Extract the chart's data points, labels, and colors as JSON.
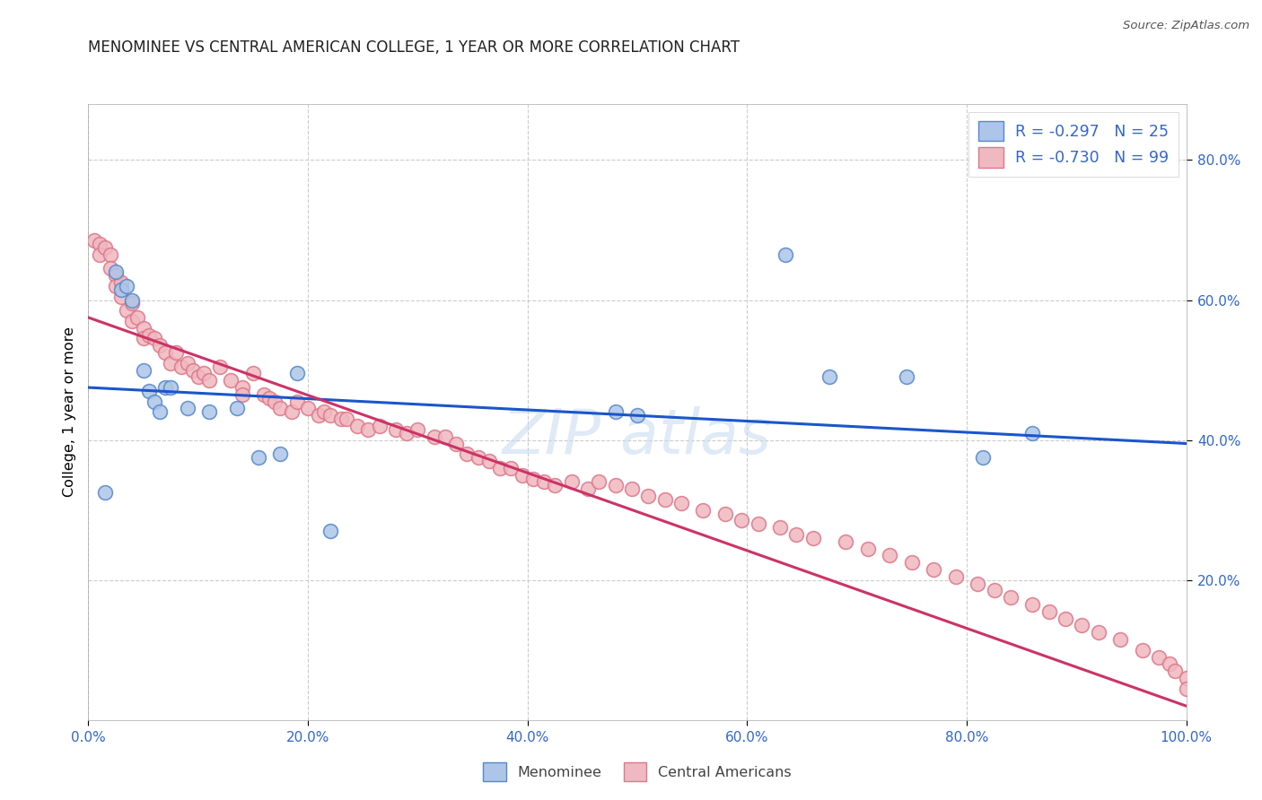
{
  "title": "MENOMINEE VS CENTRAL AMERICAN COLLEGE, 1 YEAR OR MORE CORRELATION CHART",
  "source": "Source: ZipAtlas.com",
  "ylabel": "College, 1 year or more",
  "blue_face": "#adc6e8",
  "blue_edge": "#5588cc",
  "pink_face": "#f0b8c0",
  "pink_edge": "#dd7788",
  "blue_line": "#1a56cc",
  "pink_line": "#cc3366",
  "tick_color": "#3366cc",
  "title_color": "#222222",
  "legend_label_color": "#3366cc",
  "bottom_legend_color": "#444444",
  "menominee_x": [
    0.015,
    0.025,
    0.03,
    0.035,
    0.04,
    0.05,
    0.055,
    0.06,
    0.065,
    0.07,
    0.075,
    0.09,
    0.11,
    0.135,
    0.155,
    0.175,
    0.19,
    0.22,
    0.48,
    0.5,
    0.635,
    0.675,
    0.745,
    0.815,
    0.86
  ],
  "menominee_y": [
    0.325,
    0.64,
    0.615,
    0.62,
    0.6,
    0.5,
    0.47,
    0.455,
    0.44,
    0.475,
    0.475,
    0.445,
    0.44,
    0.445,
    0.375,
    0.38,
    0.495,
    0.27,
    0.44,
    0.435,
    0.665,
    0.49,
    0.49,
    0.375,
    0.41
  ],
  "central_x": [
    0.005,
    0.01,
    0.01,
    0.015,
    0.02,
    0.02,
    0.025,
    0.025,
    0.03,
    0.03,
    0.035,
    0.04,
    0.04,
    0.045,
    0.05,
    0.05,
    0.055,
    0.06,
    0.065,
    0.07,
    0.075,
    0.08,
    0.085,
    0.09,
    0.095,
    0.1,
    0.105,
    0.11,
    0.12,
    0.13,
    0.14,
    0.14,
    0.15,
    0.16,
    0.165,
    0.17,
    0.175,
    0.185,
    0.19,
    0.2,
    0.21,
    0.215,
    0.22,
    0.23,
    0.235,
    0.245,
    0.255,
    0.265,
    0.28,
    0.29,
    0.3,
    0.315,
    0.325,
    0.335,
    0.345,
    0.355,
    0.365,
    0.375,
    0.385,
    0.395,
    0.405,
    0.415,
    0.425,
    0.44,
    0.455,
    0.465,
    0.48,
    0.495,
    0.51,
    0.525,
    0.54,
    0.56,
    0.58,
    0.595,
    0.61,
    0.63,
    0.645,
    0.66,
    0.69,
    0.71,
    0.73,
    0.75,
    0.77,
    0.79,
    0.81,
    0.825,
    0.84,
    0.86,
    0.875,
    0.89,
    0.905,
    0.92,
    0.94,
    0.96,
    0.975,
    0.985,
    0.99,
    1.0,
    1.0
  ],
  "central_y": [
    0.685,
    0.68,
    0.665,
    0.675,
    0.665,
    0.645,
    0.635,
    0.62,
    0.625,
    0.605,
    0.585,
    0.595,
    0.57,
    0.575,
    0.56,
    0.545,
    0.55,
    0.545,
    0.535,
    0.525,
    0.51,
    0.525,
    0.505,
    0.51,
    0.5,
    0.49,
    0.495,
    0.485,
    0.505,
    0.485,
    0.475,
    0.465,
    0.495,
    0.465,
    0.46,
    0.455,
    0.445,
    0.44,
    0.455,
    0.445,
    0.435,
    0.44,
    0.435,
    0.43,
    0.43,
    0.42,
    0.415,
    0.42,
    0.415,
    0.41,
    0.415,
    0.405,
    0.405,
    0.395,
    0.38,
    0.375,
    0.37,
    0.36,
    0.36,
    0.35,
    0.345,
    0.34,
    0.335,
    0.34,
    0.33,
    0.34,
    0.335,
    0.33,
    0.32,
    0.315,
    0.31,
    0.3,
    0.295,
    0.285,
    0.28,
    0.275,
    0.265,
    0.26,
    0.255,
    0.245,
    0.235,
    0.225,
    0.215,
    0.205,
    0.195,
    0.185,
    0.175,
    0.165,
    0.155,
    0.145,
    0.135,
    0.125,
    0.115,
    0.1,
    0.09,
    0.08,
    0.07,
    0.06,
    0.045
  ],
  "blue_line_x0": 0.0,
  "blue_line_y0": 0.475,
  "blue_line_x1": 1.0,
  "blue_line_y1": 0.395,
  "pink_line_x0": 0.0,
  "pink_line_y0": 0.575,
  "pink_line_x1": 1.0,
  "pink_line_y1": 0.02,
  "xlim_min": 0.0,
  "xlim_max": 1.0,
  "ylim_min": 0.0,
  "ylim_max": 0.88,
  "xticks": [
    0.0,
    0.2,
    0.4,
    0.6,
    0.8,
    1.0
  ],
  "xtick_labels": [
    "0.0%",
    "20.0%",
    "40.0%",
    "60.0%",
    "80.0%",
    "100.0%"
  ],
  "yticks": [
    0.2,
    0.4,
    0.6,
    0.8
  ],
  "ytick_labels": [
    "20.0%",
    "40.0%",
    "60.0%",
    "80.0%"
  ],
  "legend1_text": "R = -0.297   N = 25",
  "legend2_text": "R = -0.730   N = 99",
  "bottom_legend1": "Menominee",
  "bottom_legend2": "Central Americans",
  "marker_size": 130,
  "marker_lw": 1.2
}
